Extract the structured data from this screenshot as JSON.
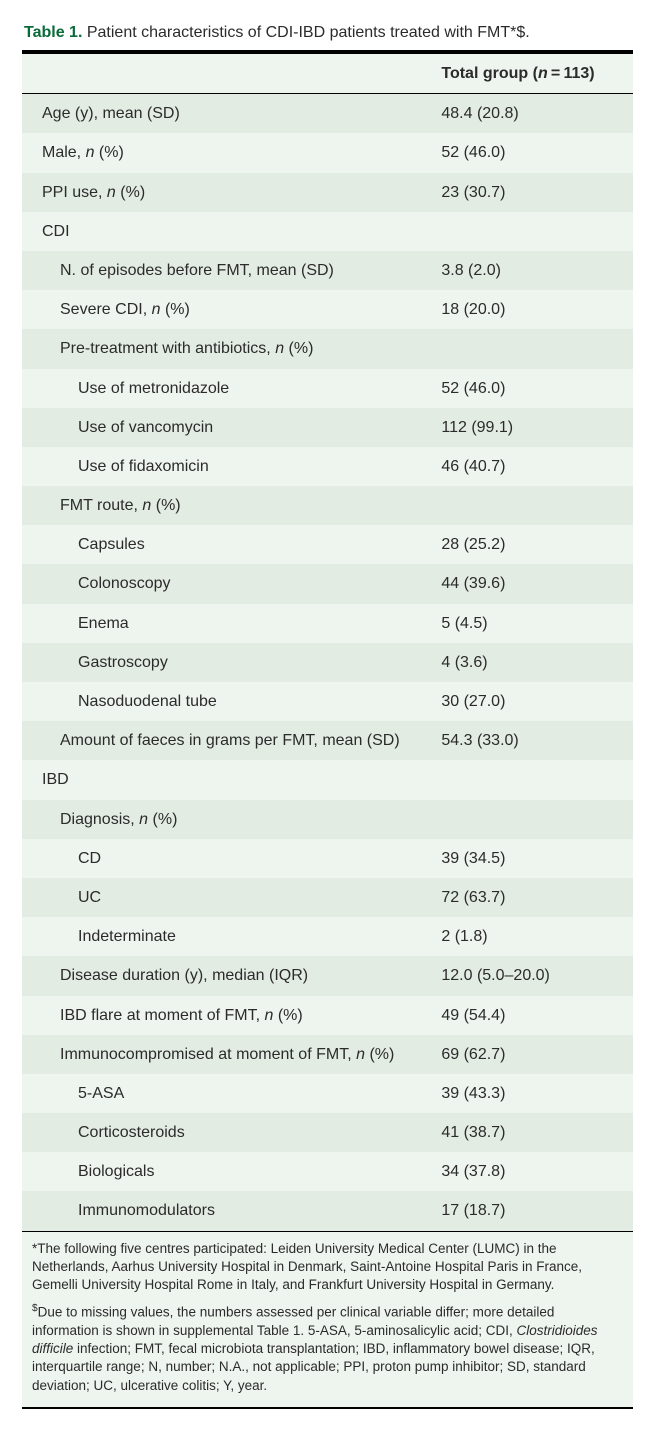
{
  "caption": {
    "label": "Table 1.",
    "title": "Patient characteristics of CDI-IBD patients treated with FMT*$."
  },
  "header": {
    "label": "",
    "value_html": "Total group (<span class='ital'>n</span> = 113)"
  },
  "colors": {
    "stripe_bg": "#e3ece3",
    "plain_bg": "#eef4ee",
    "accent": "#0a6b3a",
    "text": "#2b2b2b",
    "rule": "#000000"
  },
  "rows": [
    {
      "indent": 0,
      "stripe": true,
      "label": "Age (y), mean (SD)",
      "value": "48.4 (20.8)"
    },
    {
      "indent": 0,
      "stripe": false,
      "label_html": "Male, <span class='ital'>n</span> (%)",
      "value": "52 (46.0)"
    },
    {
      "indent": 0,
      "stripe": true,
      "label_html": "PPI use, <span class='ital'>n</span> (%)",
      "value": "23 (30.7)"
    },
    {
      "indent": 0,
      "stripe": false,
      "label": "CDI",
      "value": ""
    },
    {
      "indent": 1,
      "stripe": true,
      "label": "N. of episodes before FMT, mean (SD)",
      "value": "3.8 (2.0)"
    },
    {
      "indent": 1,
      "stripe": false,
      "label_html": "Severe CDI, <span class='ital'>n</span> (%)",
      "value": "18 (20.0)"
    },
    {
      "indent": 1,
      "stripe": true,
      "label_html": "Pre-treatment with antibiotics, <span class='ital'>n</span> (%)",
      "value": ""
    },
    {
      "indent": 2,
      "stripe": false,
      "label": "Use of metronidazole",
      "value": "52 (46.0)"
    },
    {
      "indent": 2,
      "stripe": true,
      "label": "Use of vancomycin",
      "value": "112 (99.1)"
    },
    {
      "indent": 2,
      "stripe": false,
      "label": "Use of fidaxomicin",
      "value": "46 (40.7)"
    },
    {
      "indent": 1,
      "stripe": true,
      "label_html": "FMT route, <span class='ital'>n</span> (%)",
      "value": ""
    },
    {
      "indent": 2,
      "stripe": false,
      "label": "Capsules",
      "value": "28 (25.2)"
    },
    {
      "indent": 2,
      "stripe": true,
      "label": "Colonoscopy",
      "value": "44 (39.6)"
    },
    {
      "indent": 2,
      "stripe": false,
      "label": "Enema",
      "value": "5 (4.5)"
    },
    {
      "indent": 2,
      "stripe": true,
      "label": "Gastroscopy",
      "value": "4 (3.6)"
    },
    {
      "indent": 2,
      "stripe": false,
      "label": "Nasoduodenal tube",
      "value": "30 (27.0)"
    },
    {
      "indent": 1,
      "stripe": true,
      "label": "Amount of faeces in grams per FMT, mean (SD)",
      "value": "54.3 (33.0)"
    },
    {
      "indent": 0,
      "stripe": false,
      "label": "IBD",
      "value": ""
    },
    {
      "indent": 1,
      "stripe": true,
      "label_html": "Diagnosis, <span class='ital'>n</span> (%)",
      "value": ""
    },
    {
      "indent": 2,
      "stripe": false,
      "label": "CD",
      "value": "39 (34.5)"
    },
    {
      "indent": 2,
      "stripe": true,
      "label": "UC",
      "value": "72 (63.7)"
    },
    {
      "indent": 2,
      "stripe": false,
      "label": "Indeterminate",
      "value": "2 (1.8)"
    },
    {
      "indent": 1,
      "stripe": true,
      "label": "Disease duration (y), median (IQR)",
      "value": "12.0 (5.0–20.0)"
    },
    {
      "indent": 1,
      "stripe": false,
      "label_html": "IBD flare at moment of FMT, <span class='ital'>n</span> (%)",
      "value": "49 (54.4)"
    },
    {
      "indent": 1,
      "stripe": true,
      "label_html": "Immunocompromised at moment of FMT, <span class='ital'>n</span> (%)",
      "value": "69 (62.7)"
    },
    {
      "indent": 2,
      "stripe": false,
      "label": "5-ASA",
      "value": "39 (43.3)"
    },
    {
      "indent": 2,
      "stripe": true,
      "label": "Corticosteroids",
      "value": "41 (38.7)"
    },
    {
      "indent": 2,
      "stripe": false,
      "label": "Biologicals",
      "value": "34 (37.8)"
    },
    {
      "indent": 2,
      "stripe": true,
      "label": "Immunomodulators",
      "value": "17 (18.7)",
      "last": true
    }
  ],
  "footnotes": [
    {
      "html": "*The following five centres participated: Leiden University Medical Center (LUMC) in the Netherlands, Aarhus University Hospital in Denmark, Saint-Antoine Hospital Paris in France, Gemelli University Hospital Rome in Italy, and Frankfurt University Hospital in Germany."
    },
    {
      "html": "<span class='sup'>$</span>Due to missing values, the numbers assessed per clinical variable differ; more detailed information is shown in supplemental Table 1. 5-ASA, 5-aminosalicylic acid; CDI, <span class='ital'>Clostridioides difficile</span> infection; FMT, fecal microbiota transplantation; IBD, inflammatory bowel disease; IQR, interquartile range; N, number; N.A., not applicable; PPI, proton pump inhibitor; SD, standard deviation; UC, ulcerative colitis; Y, year."
    }
  ]
}
